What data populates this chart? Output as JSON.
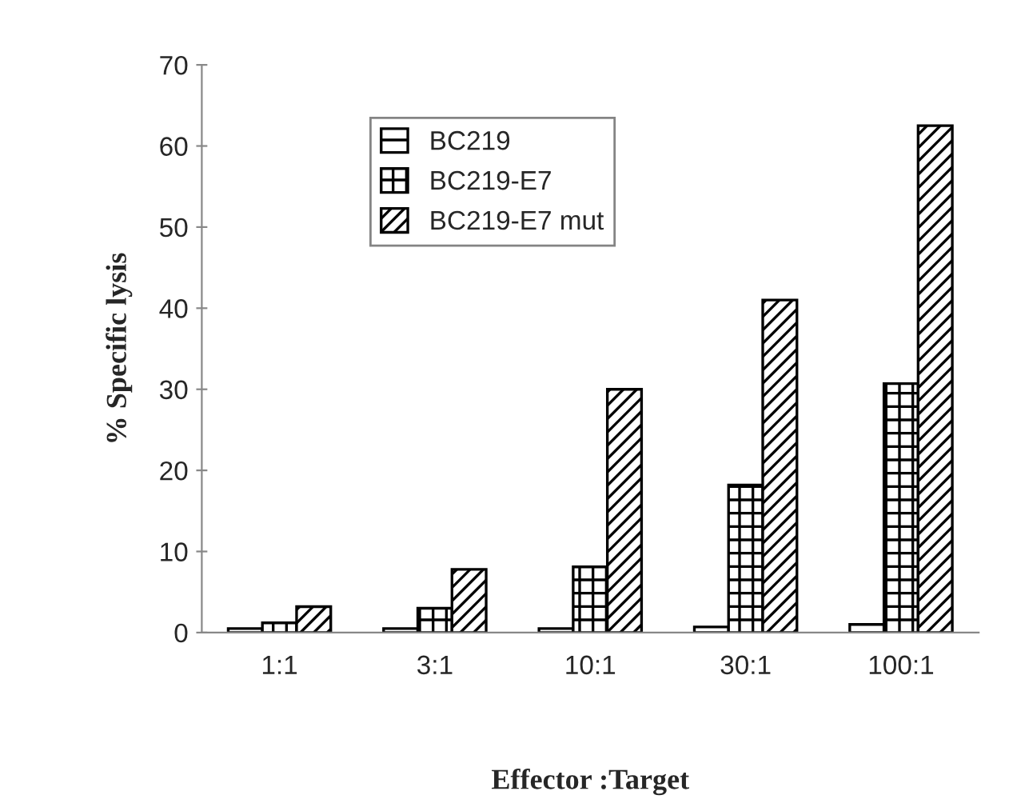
{
  "chart_data": {
    "type": "bar",
    "xlabel": "Effector :Target",
    "ylabel": "% Specific lysis",
    "categories": [
      "1:1",
      "3:1",
      "10:1",
      "30:1",
      "100:1"
    ],
    "series": [
      {
        "name": "BC219",
        "color": "#000000",
        "values": [
          0.5,
          0.5,
          0.5,
          0.7,
          1.0
        ]
      },
      {
        "name": "BC219-E7",
        "color": "#000000",
        "values": [
          1.2,
          3.0,
          8.1,
          18.2,
          30.7
        ]
      },
      {
        "name": "BC219-E7 mut",
        "color": "#000000",
        "values": [
          3.2,
          7.8,
          30.0,
          41.0,
          62.5
        ]
      }
    ],
    "ylim": [
      0,
      70
    ],
    "yticks": [
      0,
      10,
      20,
      30,
      40,
      50,
      60,
      70
    ],
    "grid": false,
    "legend": "top left"
  }
}
